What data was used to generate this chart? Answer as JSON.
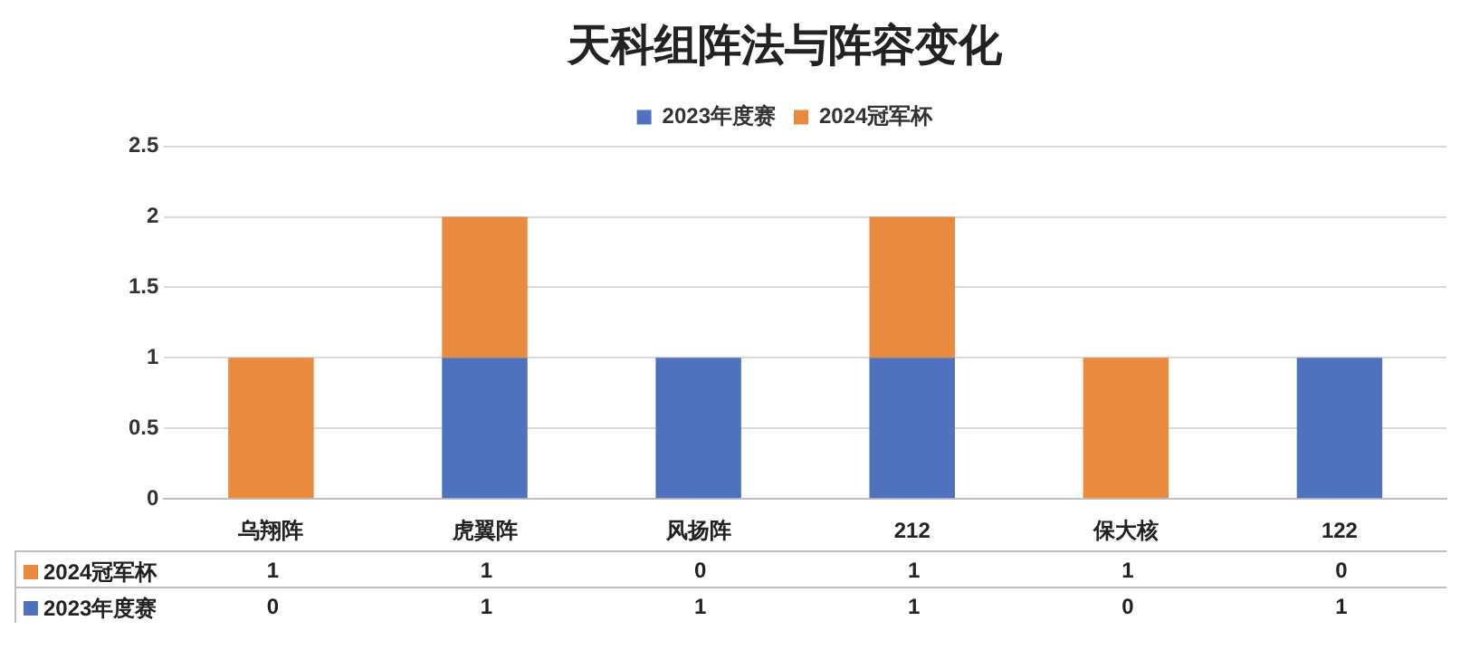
{
  "chart_data": {
    "type": "bar",
    "title": "天科组阵法与阵容变化",
    "categories": [
      "乌翔阵",
      "虎翼阵",
      "风扬阵",
      "212",
      "保大核",
      "122"
    ],
    "stacked": true,
    "data_labels": true,
    "grid": "y",
    "legend": "top",
    "ylim": [
      0,
      2.5
    ],
    "yticks": [
      0,
      0.5,
      1,
      1.5,
      2,
      2.5
    ],
    "series": [
      {
        "name": "2023年度赛",
        "color": "#4f71be",
        "values": [
          0,
          1,
          1,
          1,
          0,
          1
        ]
      },
      {
        "name": "2024冠军杯",
        "color": "#e98a3e",
        "values": [
          1,
          1,
          0,
          1,
          1,
          0
        ]
      }
    ]
  }
}
